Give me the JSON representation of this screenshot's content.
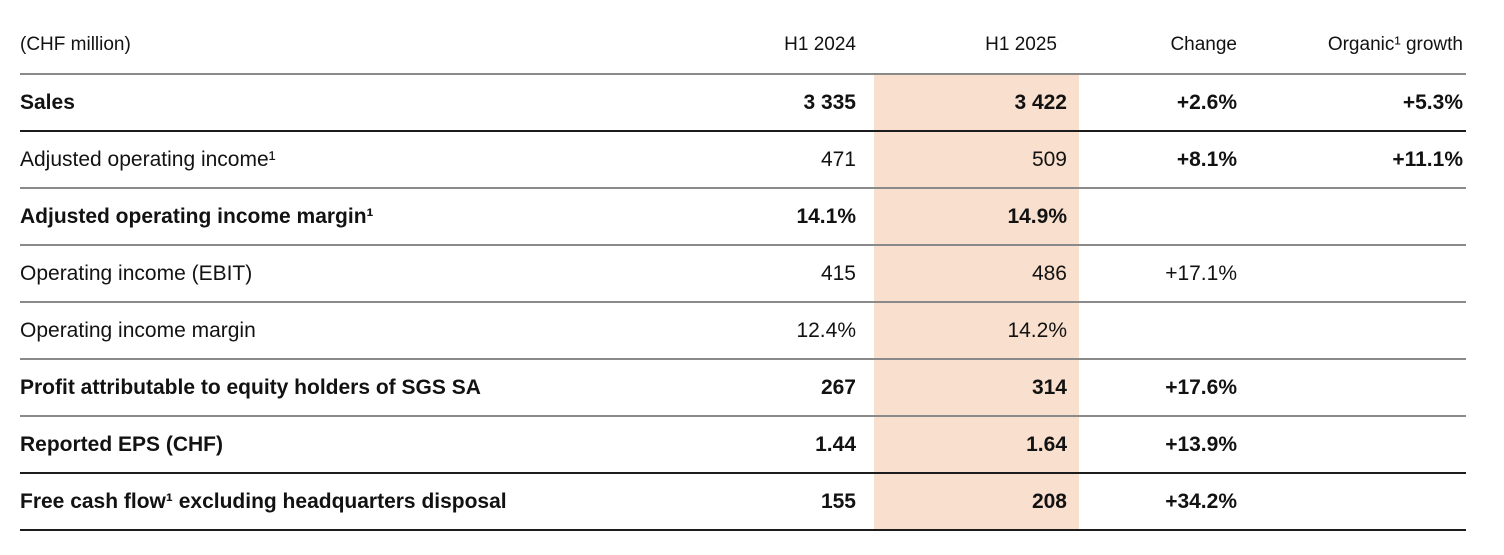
{
  "chart_data": {
    "type": "table",
    "unit_label": "(CHF million)",
    "column_headers": [
      "H1 2024",
      "H1 2025",
      "Change",
      "Organic¹ growth"
    ],
    "highlighted_column": "H1 2025",
    "highlight_color": "#f9dfcd",
    "divider_light_color": "#8a8a8a",
    "divider_dark_color": "#1c1c1c",
    "rows": [
      {
        "label": "Sales",
        "values": [
          "3 335",
          "3 422",
          "+2.6%",
          "+5.3%"
        ],
        "bold": true,
        "bold_change": true,
        "divider": "dark"
      },
      {
        "label": "Adjusted operating income¹",
        "values": [
          "471",
          "509",
          "+8.1%",
          "+11.1%"
        ],
        "bold": false,
        "bold_change": true,
        "divider": "light"
      },
      {
        "label": "Adjusted operating income margin¹",
        "values": [
          "14.1%",
          "14.9%",
          "",
          ""
        ],
        "bold": true,
        "bold_change": true,
        "divider": "light"
      },
      {
        "label": "Operating income (EBIT)",
        "values": [
          "415",
          "486",
          "+17.1%",
          ""
        ],
        "bold": false,
        "bold_change": false,
        "divider": "light"
      },
      {
        "label": "Operating income margin",
        "values": [
          "12.4%",
          "14.2%",
          "",
          ""
        ],
        "bold": false,
        "bold_change": false,
        "divider": "light"
      },
      {
        "label": "Profit attributable to equity holders of SGS SA",
        "values": [
          "267",
          "314",
          "+17.6%",
          ""
        ],
        "bold": true,
        "bold_change": true,
        "divider": "light"
      },
      {
        "label": "Reported EPS (CHF)",
        "values": [
          "1.44",
          "1.64",
          "+13.9%",
          ""
        ],
        "bold": true,
        "bold_change": true,
        "divider": "dark"
      },
      {
        "label": "Free cash flow¹ excluding headquarters disposal",
        "values": [
          "155",
          "208",
          "+34.2%",
          ""
        ],
        "bold": true,
        "bold_change": true,
        "divider": "dark"
      }
    ]
  }
}
